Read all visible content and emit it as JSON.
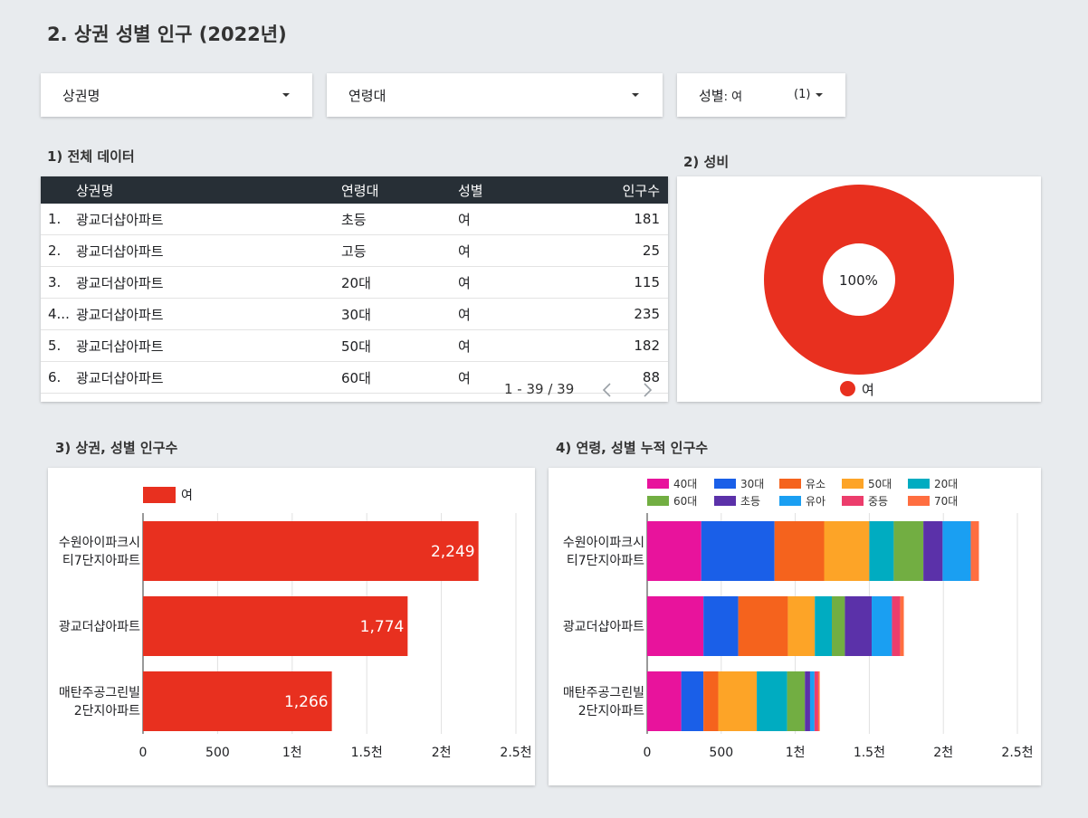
{
  "page_title": "2. 상권 성별 인구 (2022년)",
  "filters": {
    "area": "상권명",
    "age": "연령대",
    "gender_label": "성별",
    "gender_value": ": 여",
    "gender_count": "(1)"
  },
  "table_section": {
    "title": "1) 전체 데이터",
    "headers": [
      "상권명",
      "연령대",
      "성별",
      "인구수"
    ],
    "rows": [
      {
        "idx": "1.",
        "name": "광교더샵아파트",
        "age": "초등",
        "gender": "여",
        "count": "181"
      },
      {
        "idx": "2.",
        "name": "광교더샵아파트",
        "age": "고등",
        "gender": "여",
        "count": "25"
      },
      {
        "idx": "3.",
        "name": "광교더샵아파트",
        "age": "20대",
        "gender": "여",
        "count": "115"
      },
      {
        "idx": "4...",
        "name": "광교더샵아파트",
        "age": "30대",
        "gender": "여",
        "count": "235"
      },
      {
        "idx": "5.",
        "name": "광교더샵아파트",
        "age": "50대",
        "gender": "여",
        "count": "182"
      },
      {
        "idx": "6.",
        "name": "광교더샵아파트",
        "age": "60대",
        "gender": "여",
        "count": "88"
      }
    ],
    "pagination": "1 - 39 / 39"
  },
  "ratio_section": {
    "title": "2) 성비",
    "center_label": "100%",
    "legend": "여",
    "color": "#e8301f"
  },
  "bar_section": {
    "title": "3) 상권, 성별 인구수"
  },
  "stack_section": {
    "title": "4) 연령, 성별 누적 인구수"
  },
  "chart_data": [
    {
      "type": "pie",
      "title": "2) 성비",
      "labels": [
        "여"
      ],
      "values": [
        100
      ],
      "colors": [
        "#e8301f"
      ]
    },
    {
      "type": "bar",
      "orientation": "horizontal",
      "title": "3) 상권, 성별 인구수",
      "categories": [
        "수원아이파크시티7단지아파트",
        "광교더샵아파트",
        "매탄주공그린빌2단지아파트"
      ],
      "category_lines": [
        [
          "수원아이파크시",
          "티7단지아파트"
        ],
        [
          "광교더샵아파트"
        ],
        [
          "매탄주공그린빌",
          "2단지아파트"
        ]
      ],
      "series": [
        {
          "name": "여",
          "values": [
            2249,
            1774,
            1266
          ],
          "color": "#e8301f"
        }
      ],
      "data_labels": [
        "2,249",
        "1,774",
        "1,266"
      ],
      "xlim": [
        0,
        2500
      ],
      "ticks": [
        0,
        500,
        1000,
        1500,
        2000,
        2500
      ],
      "tick_labels": [
        "0",
        "500",
        "1천",
        "1.5천",
        "2천",
        "2.5천"
      ],
      "grid": true,
      "legend_position": "top-left"
    },
    {
      "type": "bar",
      "orientation": "horizontal",
      "stacked": true,
      "title": "4) 연령, 성별 누적 인구수",
      "categories": [
        "수원아이파크시티7단지아파트",
        "광교더샵아파트",
        "매탄주공그린빌2단지아파트"
      ],
      "category_lines": [
        [
          "수원아이파크시",
          "티7단지아파트"
        ],
        [
          "광교더샵아파트"
        ],
        [
          "매탄주공그린빌",
          "2단지아파트"
        ]
      ],
      "series": [
        {
          "name": "40대",
          "color": "#e8139c",
          "values": [
            365,
            380,
            230
          ]
        },
        {
          "name": "30대",
          "color": "#1a5fe8",
          "values": [
            495,
            235,
            150
          ]
        },
        {
          "name": "유소",
          "color": "#f5631d",
          "values": [
            335,
            335,
            100
          ]
        },
        {
          "name": "50대",
          "color": "#fda427",
          "values": [
            305,
            182,
            260
          ]
        },
        {
          "name": "20대",
          "color": "#00acc1",
          "values": [
            165,
            115,
            205
          ]
        },
        {
          "name": "60대",
          "color": "#72ae42",
          "values": [
            200,
            88,
            120
          ]
        },
        {
          "name": "초등",
          "color": "#5b31a9",
          "values": [
            130,
            181,
            35
          ]
        },
        {
          "name": "유아",
          "color": "#1a9ff2",
          "values": [
            190,
            137,
            30
          ]
        },
        {
          "name": "중등",
          "color": "#ec3d6c",
          "values": [
            0,
            55,
            25
          ]
        },
        {
          "name": "70대",
          "color": "#ff6e40",
          "values": [
            55,
            25,
            10
          ]
        }
      ],
      "xlim": [
        0,
        2500
      ],
      "ticks": [
        0,
        500,
        1000,
        1500,
        2000,
        2500
      ],
      "tick_labels": [
        "0",
        "500",
        "1천",
        "1.5천",
        "2천",
        "2.5천"
      ],
      "grid": true,
      "legend_position": "top"
    }
  ]
}
